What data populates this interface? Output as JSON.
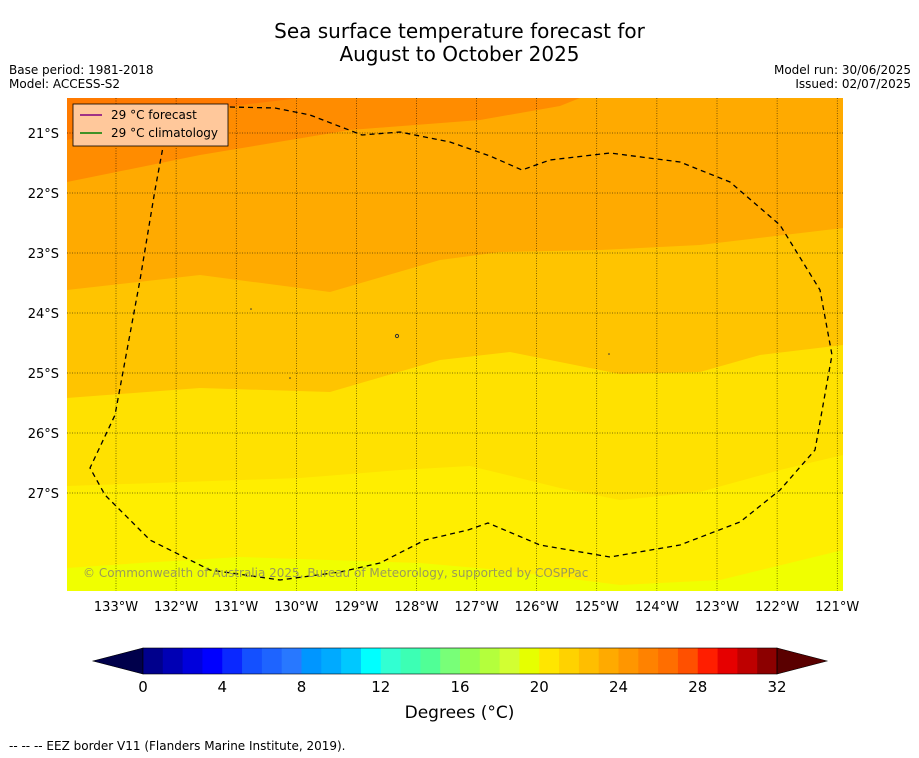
{
  "title_line1": "Sea surface temperature forecast for",
  "title_line2": "August to October 2025",
  "base_period": "Base period: 1981-2018",
  "model": "Model: ACCESS-S2",
  "model_run": "Model run: 30/06/2025",
  "issued": "Issued: 02/07/2025",
  "legend": {
    "forecast": "29 °C  forecast",
    "forecast_color": "#800080",
    "climatology": "29 °C  climatology",
    "climatology_color": "#008000"
  },
  "copyright": "© Commonwealth of Australia 2025, Bureau of Meteorology, supported by COSPPac",
  "lat_labels": [
    "21°S",
    "22°S",
    "23°S",
    "24°S",
    "25°S",
    "26°S",
    "27°S"
  ],
  "lon_labels": [
    "133°W",
    "132°W",
    "131°W",
    "130°W",
    "129°W",
    "128°W",
    "127°W",
    "126°W",
    "125°W",
    "124°W",
    "123°W",
    "122°W",
    "121°W"
  ],
  "colorbar": {
    "ticks": [
      "0",
      "4",
      "8",
      "12",
      "16",
      "20",
      "24",
      "28",
      "32"
    ],
    "label": "Degrees (°C)",
    "colors": [
      "#00008c",
      "#0000b4",
      "#0000dc",
      "#0000ff",
      "#0a28ff",
      "#1450ff",
      "#1e64ff",
      "#2878ff",
      "#0096ff",
      "#00aaff",
      "#00c8ff",
      "#00ffff",
      "#32ffd2",
      "#3cffb4",
      "#50ff96",
      "#78ff78",
      "#96ff50",
      "#b4ff3c",
      "#d2ff32",
      "#e6ff00",
      "#ffe600",
      "#ffd200",
      "#ffbe00",
      "#ffaa00",
      "#ff9600",
      "#ff8200",
      "#ff6e00",
      "#ff5000",
      "#ff1e00",
      "#e60000",
      "#be0000",
      "#8c0000"
    ]
  },
  "footer": "--  --  -- EEZ border V11 (Flanders Marine Institute, 2019)."
}
